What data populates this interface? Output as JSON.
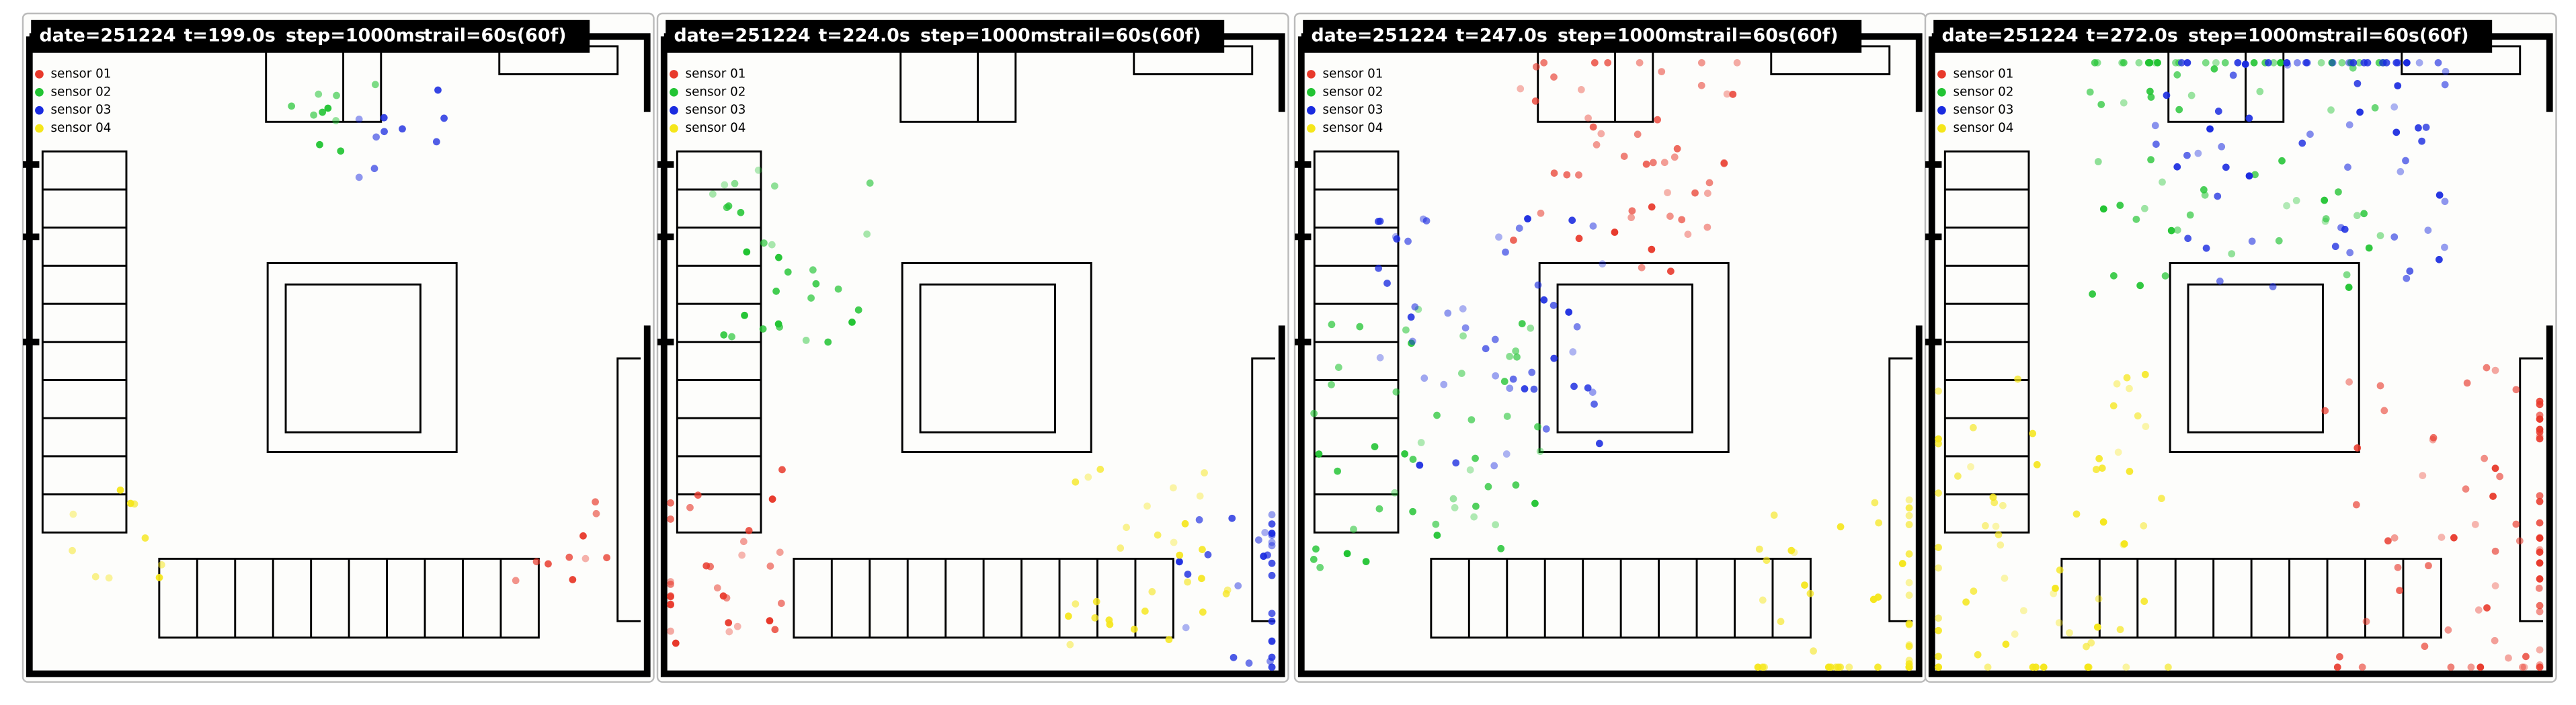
{
  "panels": [
    {
      "header": {
        "date": "date=251224",
        "t": "t=199.0s",
        "step": "step=1000ms",
        "trail": "trail=60s(60f)"
      }
    },
    {
      "header": {
        "date": "date=251224",
        "t": "t=224.0s",
        "step": "step=1000ms",
        "trail": "trail=60s(60f)"
      }
    },
    {
      "header": {
        "date": "date=251224",
        "t": "t=247.0s",
        "step": "step=1000ms",
        "trail": "trail=60s(60f)"
      }
    },
    {
      "header": {
        "date": "date=251224",
        "t": "t=272.0s",
        "step": "step=1000ms",
        "trail": "trail=60s(60f)"
      }
    }
  ],
  "legend": [
    {
      "name": "sensor 01",
      "color": "#e8392b"
    },
    {
      "name": "sensor 02",
      "color": "#22c433"
    },
    {
      "name": "sensor 03",
      "color": "#1a2be0"
    },
    {
      "name": "sensor 04",
      "color": "#f5e61a"
    }
  ]
}
